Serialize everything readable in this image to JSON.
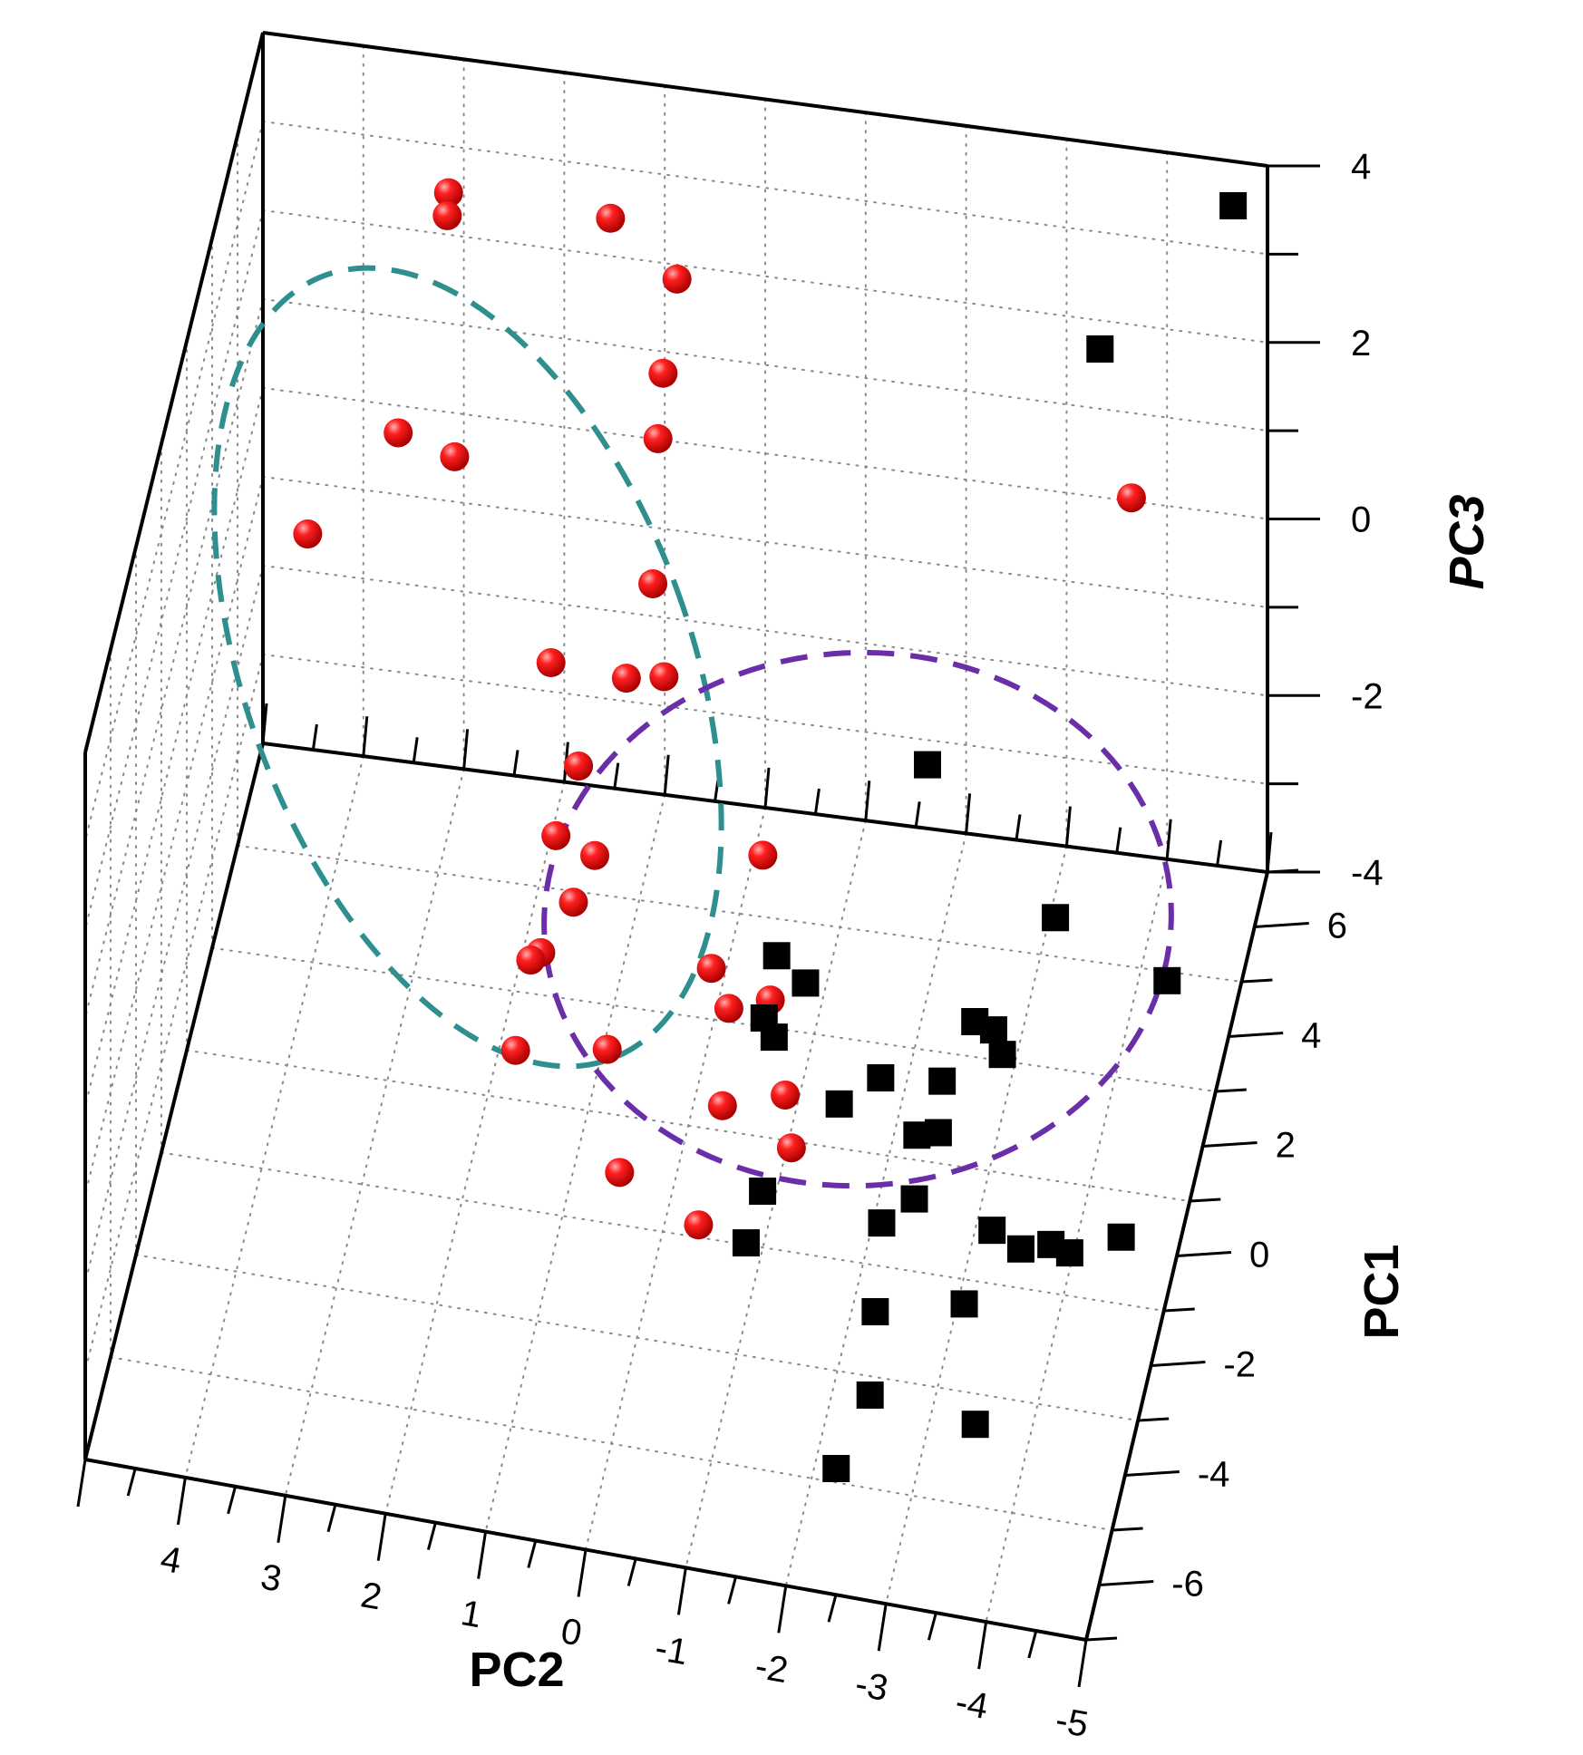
{
  "chart_data": {
    "type": "scatter",
    "projection": "3d",
    "title": "",
    "axes": {
      "x": {
        "label": "PC2",
        "range": [
          5,
          -5
        ],
        "ticks": [
          "4",
          "3",
          "2",
          "1",
          "0",
          "-1",
          "-2",
          "-3",
          "-4",
          "-5"
        ]
      },
      "y": {
        "label": "PC1",
        "range": [
          -7,
          7
        ],
        "ticks": [
          "6",
          "4",
          "2",
          "0",
          "-2",
          "-4",
          "-6"
        ]
      },
      "z": {
        "label": "PC3",
        "range": [
          -4,
          4
        ],
        "ticks": [
          "4",
          "2",
          "0",
          "-2",
          "-4"
        ]
      }
    },
    "grid": true,
    "series": [
      {
        "marker": "circle",
        "color": "#e81010",
        "points": [
          [
            1.4,
            5.9,
            3.1
          ],
          [
            3.0,
            5.8,
            3.2
          ],
          [
            3.0,
            5.7,
            3.0
          ],
          [
            0.7,
            5.6,
            2.7
          ],
          [
            0.8,
            5.3,
            1.8
          ],
          [
            0.8,
            4.9,
            1.3
          ],
          [
            3.4,
            5.0,
            0.9
          ],
          [
            2.8,
            4.7,
            0.9
          ],
          [
            0.8,
            4.5,
            -0.1
          ],
          [
            4.2,
            4.2,
            0.1
          ],
          [
            1.0,
            4.0,
            -0.9
          ],
          [
            0.6,
            3.8,
            -0.7
          ],
          [
            1.7,
            3.6,
            -0.6
          ],
          [
            1.4,
            3.4,
            -1.6
          ],
          [
            1.6,
            3.2,
            -2.3
          ],
          [
            1.2,
            3.1,
            -2.4
          ],
          [
            -0.5,
            2.9,
            -2.0
          ],
          [
            1.4,
            3.0,
            -2.9
          ],
          [
            0.0,
            2.8,
            -3.3
          ],
          [
            1.7,
            2.8,
            -3.4
          ],
          [
            1.8,
            2.8,
            -3.5
          ],
          [
            -0.6,
            2.7,
            -3.5
          ],
          [
            -0.2,
            2.6,
            -3.6
          ],
          [
            1.0,
            2.5,
            -4.2
          ],
          [
            1.9,
            2.4,
            -4.3
          ],
          [
            -0.8,
            2.3,
            -4.3
          ],
          [
            -0.2,
            2.1,
            -4.4
          ],
          [
            -0.9,
            2.0,
            -4.7
          ],
          [
            0.8,
            1.9,
            -5.2
          ],
          [
            0.0,
            1.8,
            -5.6
          ],
          [
            -3.8,
            5.8,
            0.8
          ]
        ]
      },
      {
        "marker": "square",
        "color": "#000000",
        "points": [
          [
            -4.8,
            5.9,
            4.2
          ],
          [
            -3.5,
            5.7,
            2.5
          ],
          [
            -2.0,
            4.0,
            -1.4
          ],
          [
            -3.3,
            3.8,
            -2.8
          ],
          [
            -4.4,
            3.9,
            -3.4
          ],
          [
            -0.6,
            3.2,
            -3.3
          ],
          [
            -0.9,
            3.1,
            -3.5
          ],
          [
            -0.5,
            3.0,
            -3.9
          ],
          [
            -0.6,
            3.0,
            -4.1
          ],
          [
            -2.6,
            3.0,
            -3.6
          ],
          [
            -2.8,
            2.9,
            -3.6
          ],
          [
            -2.9,
            2.8,
            -3.8
          ],
          [
            -2.3,
            2.8,
            -4.2
          ],
          [
            -1.7,
            2.7,
            -4.2
          ],
          [
            -1.3,
            2.6,
            -4.5
          ],
          [
            -2.3,
            2.5,
            -4.6
          ],
          [
            -2.1,
            2.4,
            -4.6
          ],
          [
            -2.1,
            2.2,
            -5.2
          ],
          [
            -0.6,
            2.1,
            -5.3
          ],
          [
            -1.8,
            2.0,
            -5.4
          ],
          [
            -2.9,
            2.0,
            -5.3
          ],
          [
            -3.2,
            1.9,
            -5.4
          ],
          [
            -3.5,
            1.9,
            -5.3
          ],
          [
            -3.7,
            1.8,
            -5.3
          ],
          [
            -4.2,
            1.9,
            -5.1
          ],
          [
            -0.5,
            1.6,
            -5.6
          ],
          [
            -1.8,
            1.5,
            -6.1
          ],
          [
            -2.7,
            1.4,
            -5.8
          ],
          [
            -1.8,
            1.1,
            -6.8
          ],
          [
            -1.5,
            0.8,
            -7.5
          ],
          [
            -2.9,
            0.7,
            -6.7
          ]
        ]
      }
    ],
    "group_ellipses": [
      {
        "color": "#2f8f8f",
        "style": "dashed"
      },
      {
        "color": "#6a2fa8",
        "style": "dashed"
      }
    ]
  }
}
